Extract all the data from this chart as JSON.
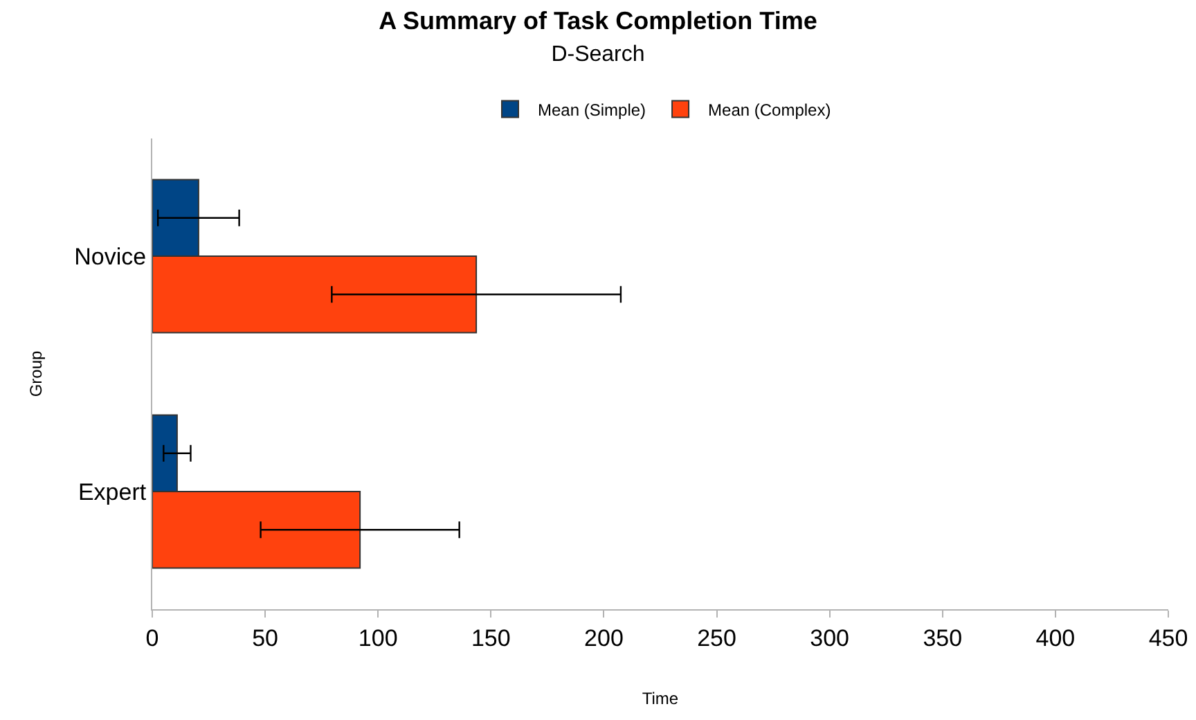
{
  "chart_data": {
    "type": "bar",
    "orientation": "horizontal",
    "title": "A Summary of Task Completion Time",
    "subtitle": "D-Search",
    "xlabel": "Time",
    "ylabel": "Group",
    "categories": [
      "Novice",
      "Expert"
    ],
    "series": [
      {
        "name": "Mean (Simple)",
        "color": "#004586",
        "values": [
          20.5,
          11
        ],
        "errors": [
          18,
          6
        ]
      },
      {
        "name": "Mean (Complex)",
        "color": "#ff420e",
        "values": [
          143.5,
          92
        ],
        "errors": [
          64,
          44
        ]
      }
    ],
    "xlim": [
      0,
      450
    ],
    "xticks": [
      0,
      50,
      100,
      150,
      200,
      250,
      300,
      350,
      400,
      450
    ],
    "grid": false,
    "legend": "top"
  }
}
